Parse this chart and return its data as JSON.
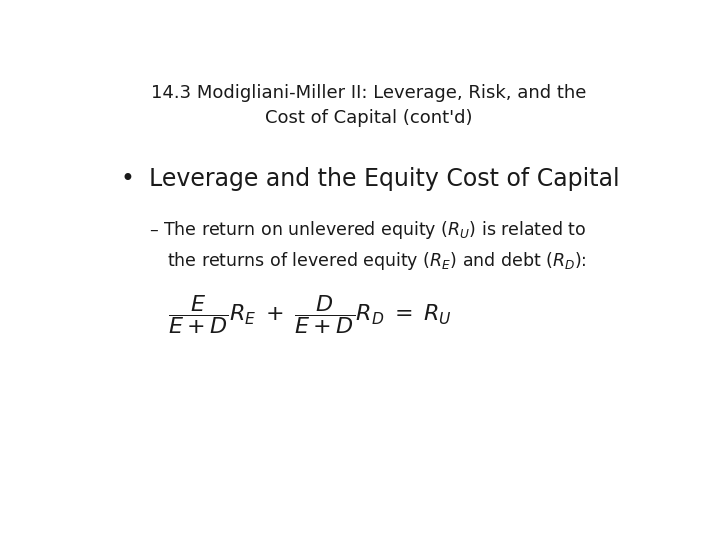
{
  "background_color": "#ffffff",
  "title_line1": "14.3 Modigliani-Miller II: Leverage, Risk, and the",
  "title_line2": "Cost of Capital (cont'd)",
  "title_fontsize": 13,
  "bullet_fontsize": 17,
  "sub_fontsize": 12.5,
  "formula_fontsize": 16,
  "text_color": "#1a1a1a"
}
